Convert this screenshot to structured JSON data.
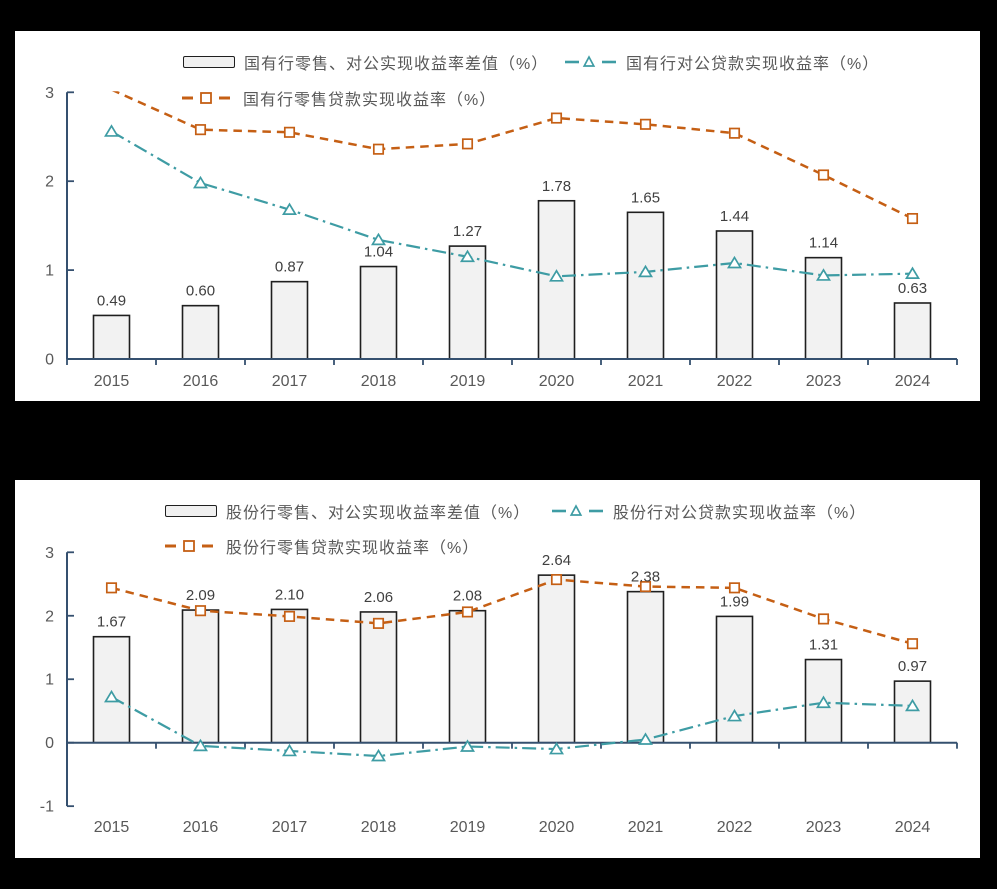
{
  "page": {
    "background": "#000000",
    "panel_background": "#FFFFFF"
  },
  "colors": {
    "bar_fill": "#F2F2F2",
    "bar_stroke": "#1F1F1F",
    "teal": "#3E9CA4",
    "orange": "#C55F14",
    "axis": "#35506F",
    "axis_label": "#595959",
    "data_label": "#404040"
  },
  "chart_data": [
    {
      "type": "bar",
      "subtype": "combo-bar-line",
      "title": "",
      "categories": [
        "2015",
        "2016",
        "2017",
        "2018",
        "2019",
        "2020",
        "2021",
        "2022",
        "2023",
        "2024"
      ],
      "ylim": [
        0,
        3
      ],
      "yticks": [
        3,
        2,
        1,
        0
      ],
      "grid": false,
      "legend_position": "top",
      "series": [
        {
          "name": "国有行零售、对公实现收益率差值（%）",
          "type": "bar",
          "color": "#F2F2F2",
          "values": [
            0.49,
            0.6,
            0.87,
            1.04,
            1.27,
            1.78,
            1.65,
            1.44,
            1.14,
            0.63
          ],
          "labels": [
            "0.49",
            "0.60",
            "0.87",
            "1.04",
            "1.27",
            "1.78",
            "1.65",
            "1.44",
            "1.14",
            "0.63"
          ]
        },
        {
          "name": "国有行对公贷款实现收益率（%）",
          "type": "line",
          "line_style": "dashdot",
          "marker": "triangle",
          "color": "#3E9CA4",
          "values": [
            2.56,
            1.98,
            1.68,
            1.34,
            1.15,
            0.93,
            0.98,
            1.08,
            0.94,
            0.96
          ]
        },
        {
          "name": "国有行零售贷款实现收益率（%）",
          "type": "line",
          "line_style": "dashed",
          "marker": "square",
          "color": "#C55F14",
          "values": [
            3.03,
            2.58,
            2.55,
            2.36,
            2.42,
            2.71,
            2.64,
            2.54,
            2.07,
            1.58
          ]
        }
      ]
    },
    {
      "type": "bar",
      "subtype": "combo-bar-line",
      "title": "",
      "categories": [
        "2015",
        "2016",
        "2017",
        "2018",
        "2019",
        "2020",
        "2021",
        "2022",
        "2023",
        "2024"
      ],
      "ylim": [
        -1,
        3
      ],
      "yticks": [
        3,
        2,
        1,
        0,
        -1
      ],
      "grid": false,
      "legend_position": "top",
      "series": [
        {
          "name": "股份行零售、对公实现收益率差值（%）",
          "type": "bar",
          "color": "#F2F2F2",
          "values": [
            1.67,
            2.09,
            2.1,
            2.06,
            2.08,
            2.64,
            2.38,
            1.99,
            1.31,
            0.97
          ],
          "labels": [
            "1.67",
            "2.09",
            "2.10",
            "2.06",
            "2.08",
            "2.64",
            "2.38",
            "1.99",
            "1.31",
            "0.97"
          ]
        },
        {
          "name": "股份行对公贷款实现收益率（%）",
          "type": "line",
          "line_style": "dashdot",
          "marker": "triangle",
          "color": "#3E9CA4",
          "values": [
            0.72,
            -0.05,
            -0.13,
            -0.21,
            -0.06,
            -0.1,
            0.05,
            0.42,
            0.63,
            0.58
          ]
        },
        {
          "name": "股份行零售贷款实现收益率（%）",
          "type": "line",
          "line_style": "dashed",
          "marker": "square",
          "color": "#C55F14",
          "values": [
            2.44,
            2.08,
            1.99,
            1.88,
            2.06,
            2.57,
            2.46,
            2.44,
            1.95,
            1.56
          ]
        }
      ]
    }
  ]
}
